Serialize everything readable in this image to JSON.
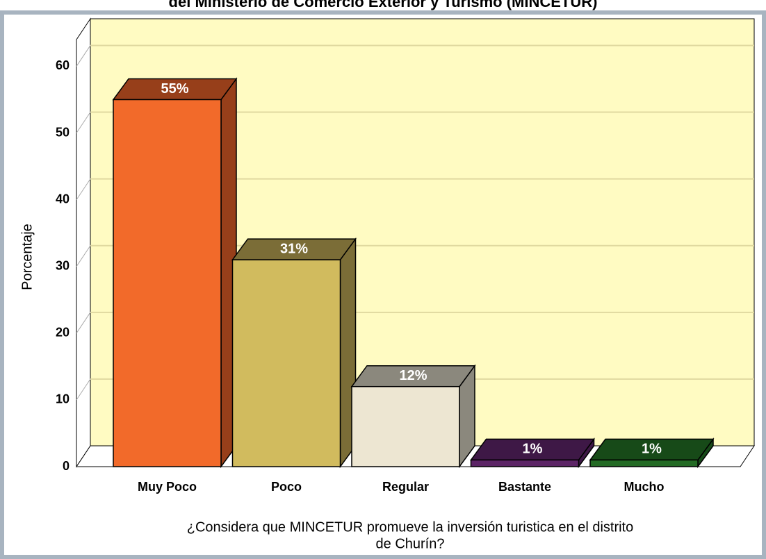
{
  "chart_data": {
    "type": "bar3d",
    "title": "del Ministerio de Comercio Exterior y Turismo (MINCETUR)",
    "ylabel": "Porcentaje",
    "xlabel": [
      "¿Considera que MINCETUR promueve la inversión turistica en el distrito",
      "de Churín?"
    ],
    "categories": [
      "Muy Poco",
      "Poco",
      "Regular",
      "Bastante",
      "Mucho"
    ],
    "values": [
      55,
      31,
      12,
      1,
      1
    ],
    "value_labels": [
      "55%",
      "31%",
      "12%",
      "1%",
      "1%"
    ],
    "colors": [
      "#f26a2a",
      "#d1bb5e",
      "#ede6d2",
      "#5c2466",
      "#236b24"
    ],
    "side_colors": [
      "#973f1a",
      "#7b6d37",
      "#8b887d",
      "#3e1846",
      "#174a18"
    ],
    "ylim": [
      0,
      64
    ],
    "yticks": [
      0,
      10,
      20,
      30,
      40,
      50,
      60
    ],
    "grid": true
  }
}
